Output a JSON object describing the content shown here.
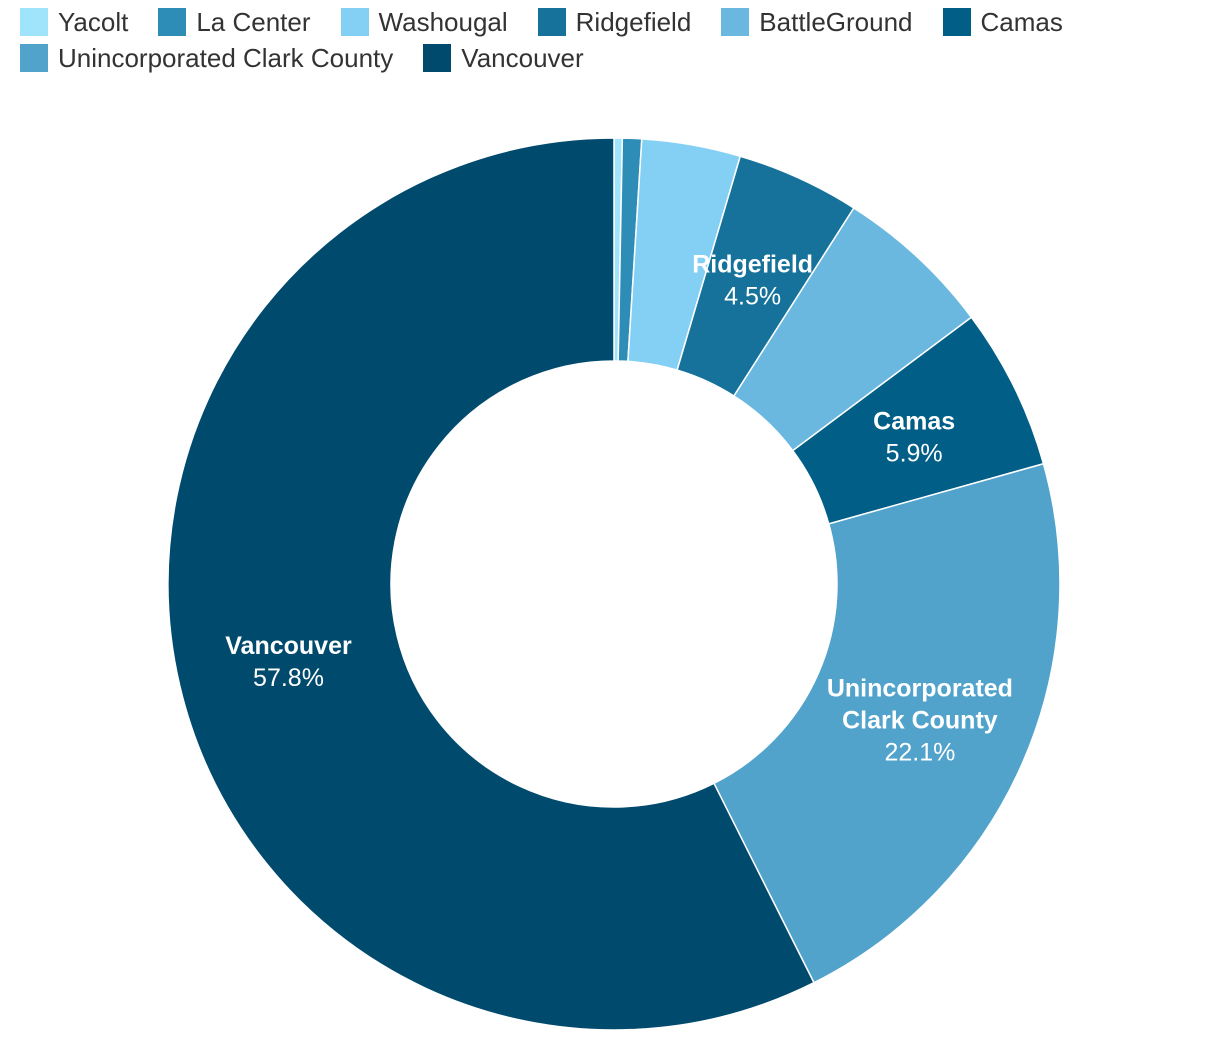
{
  "chart_data": {
    "type": "pie",
    "donut": true,
    "legend_position": "top-left",
    "categories": [
      "Yacolt",
      "La Center",
      "Washougal",
      "Ridgefield",
      "BattleGround",
      "Camas",
      "Unincorporated Clark County",
      "Vancouver"
    ],
    "values": [
      0.3,
      0.7,
      3.6,
      4.5,
      5.8,
      5.9,
      22.1,
      57.8
    ],
    "colors": [
      "#a0e4fb",
      "#2d8db7",
      "#84d0f5",
      "#16729a",
      "#6ab8e0",
      "#005e87",
      "#52a3cb",
      "#004a6d"
    ],
    "data_labels": [
      {
        "index": 3,
        "name_lines": [
          "Ridgefield"
        ],
        "value_text": "4.5%"
      },
      {
        "index": 5,
        "name_lines": [
          "Camas"
        ],
        "value_text": "5.9%"
      },
      {
        "index": 6,
        "name_lines": [
          "Unincorporated",
          "Clark County"
        ],
        "value_text": "22.1%"
      },
      {
        "index": 7,
        "name_lines": [
          "Vancouver"
        ],
        "value_text": "57.8%"
      }
    ]
  }
}
